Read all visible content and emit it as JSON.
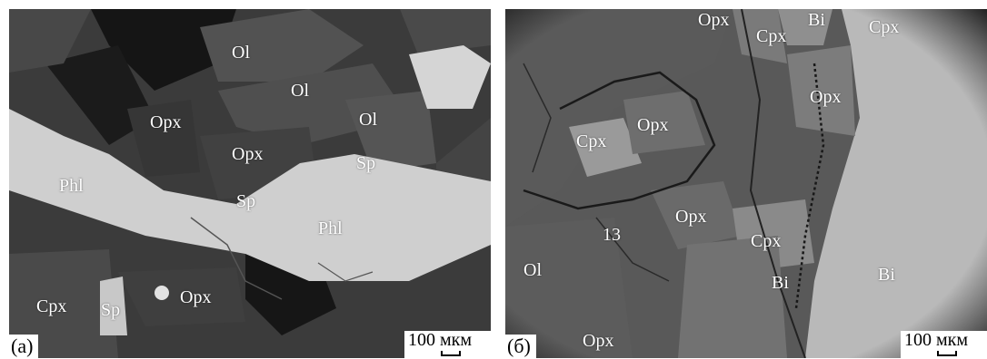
{
  "panel_a": {
    "letter": "(а)",
    "scale_label": "100 мкм",
    "labels": [
      "Ol",
      "Ol",
      "Ol",
      "Opx",
      "Opx",
      "Phl",
      "Sp",
      "Sp",
      "Phl",
      "Cpx",
      "Sp",
      "Opx"
    ]
  },
  "panel_b": {
    "letter": "(б)",
    "scale_label": "100 мкм",
    "labels": [
      "Opx",
      "Bi",
      "Cpx",
      "Cpx",
      "Opx",
      "Cpx",
      "Opx",
      "Opx",
      "13",
      "Cpx",
      "Ol",
      "Bi",
      "Bi",
      "Opx"
    ]
  }
}
